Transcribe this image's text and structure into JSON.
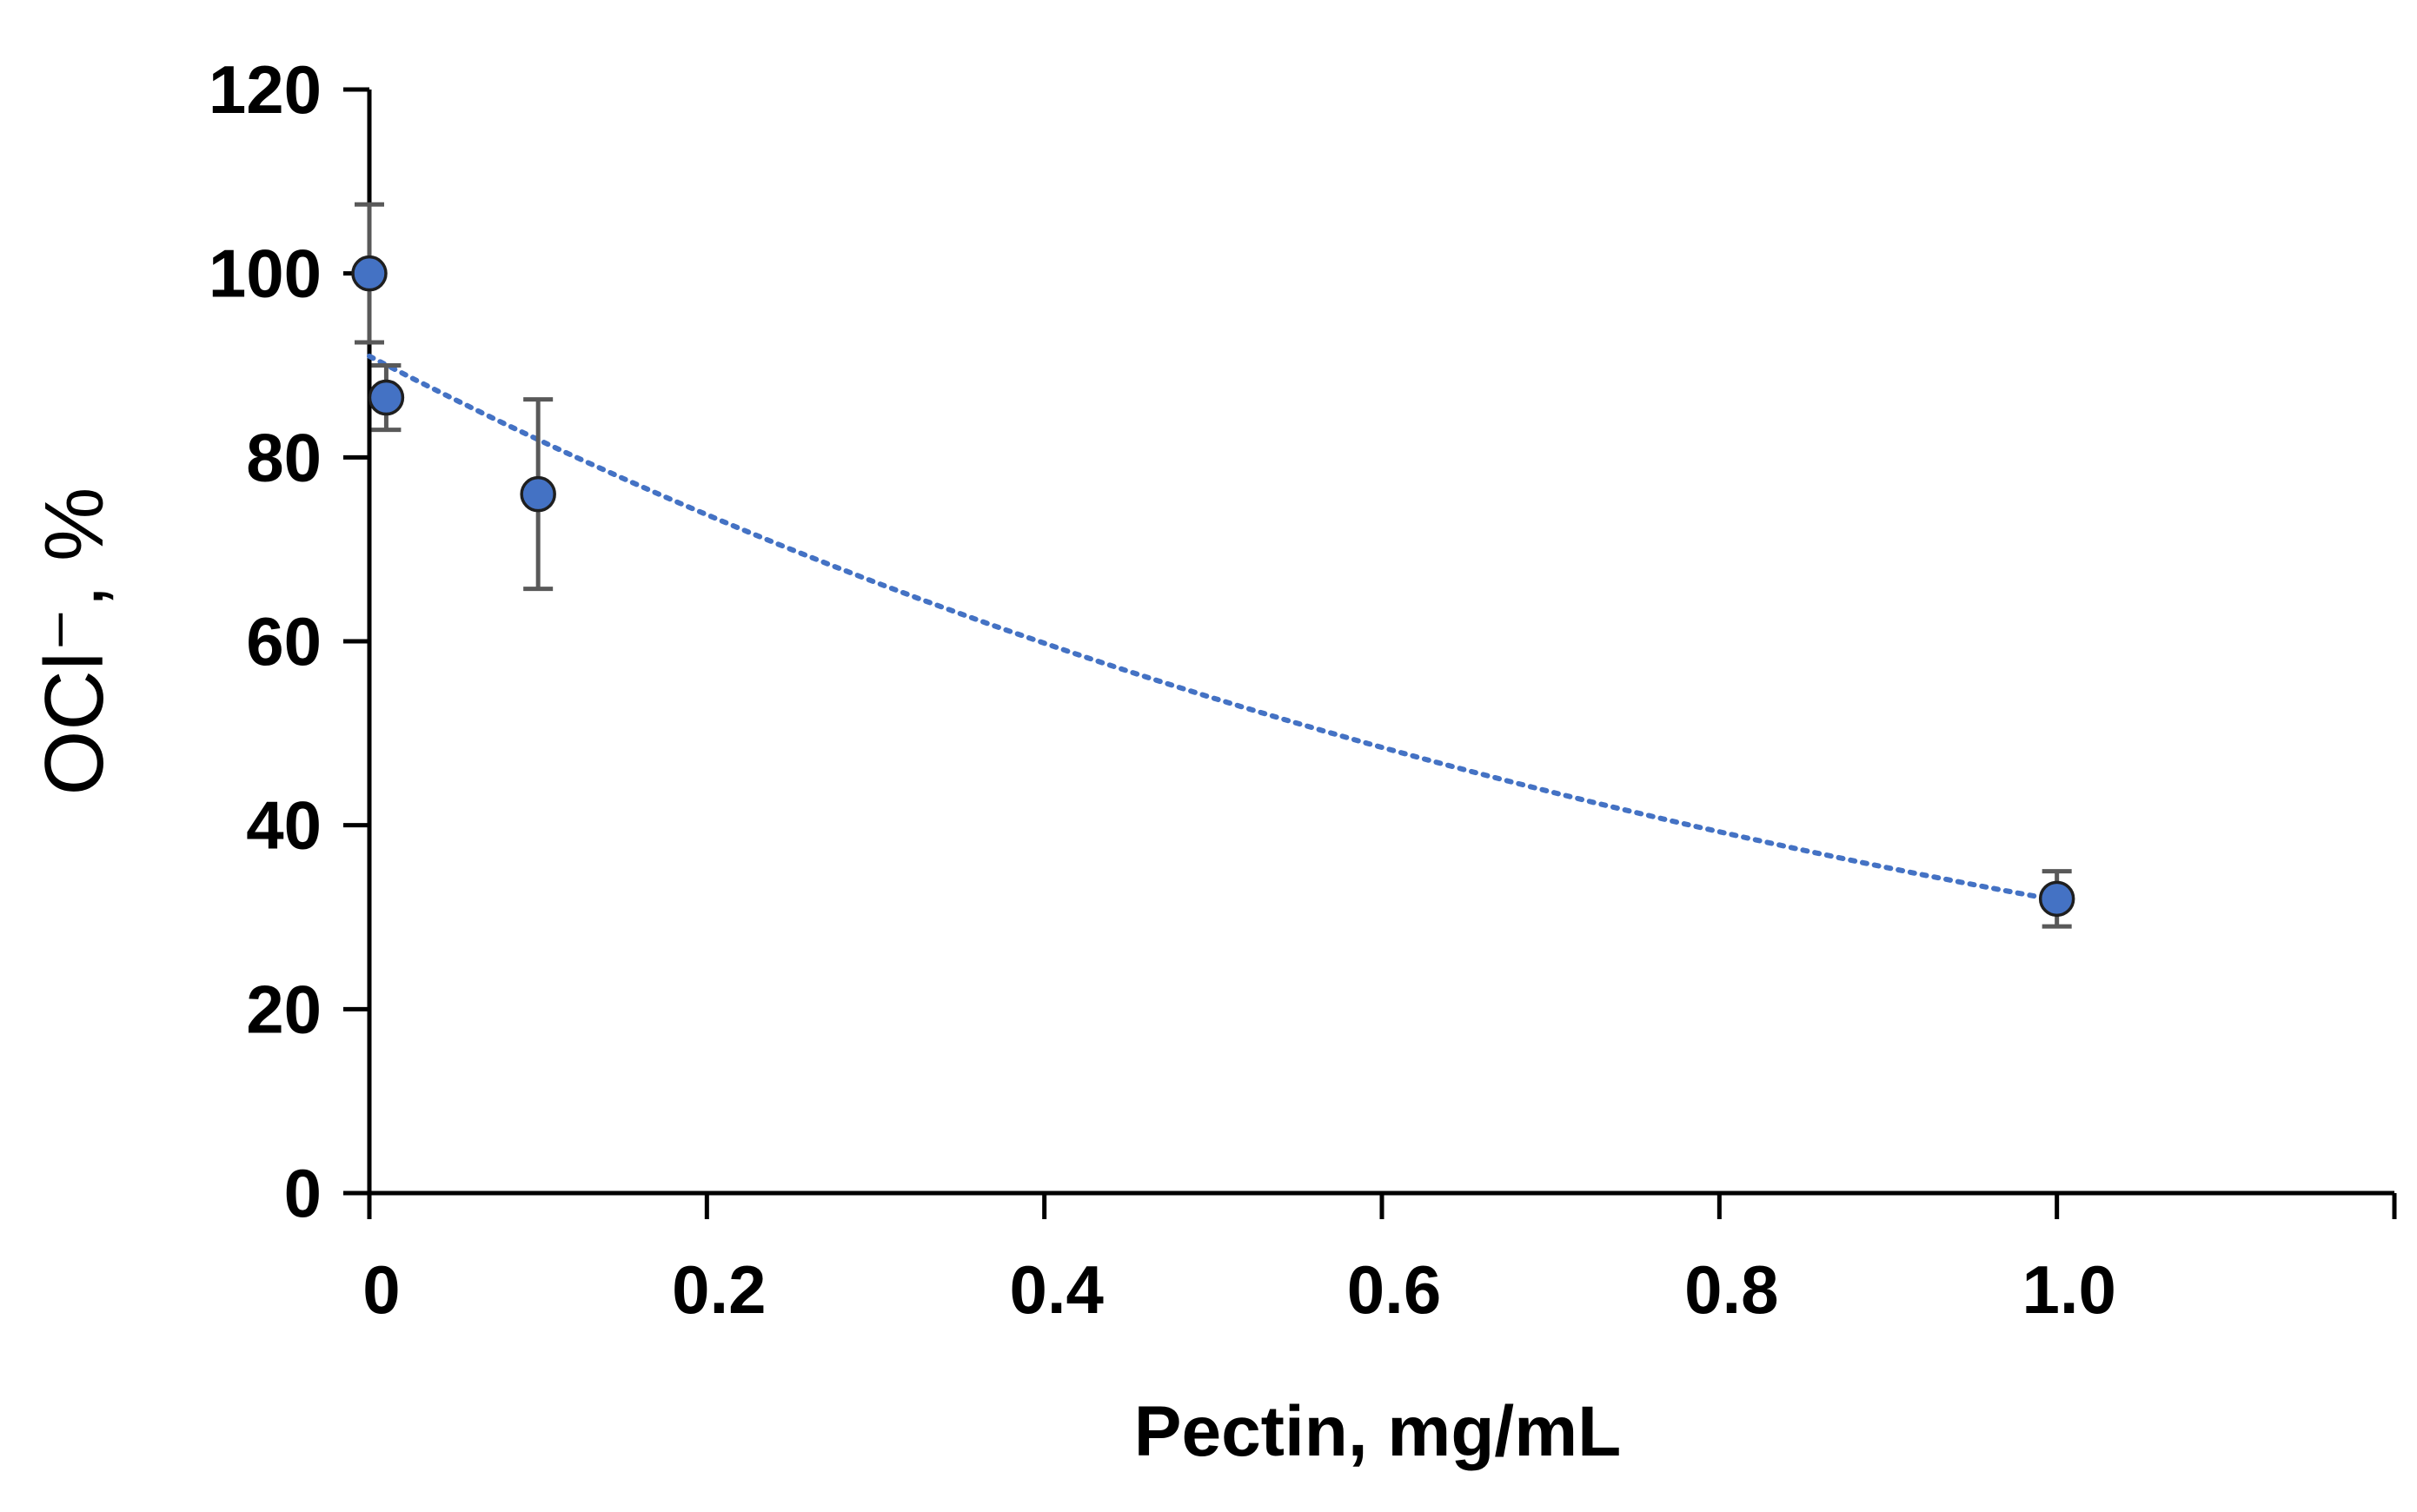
{
  "chart_data": {
    "type": "scatter",
    "title": "",
    "xlabel": "Pectin, mg/mL",
    "ylabel": "OCl⁻, %",
    "xlim": [
      0,
      1.2
    ],
    "ylim": [
      0,
      120
    ],
    "x_ticks": [
      0,
      0.2,
      0.4,
      0.6,
      0.8,
      1.0
    ],
    "x_tick_labels": [
      "0",
      "0.2",
      "0.4",
      "0.6",
      "0.8",
      "1.0"
    ],
    "y_ticks": [
      0,
      20,
      40,
      60,
      80,
      100,
      120
    ],
    "y_tick_labels": [
      "0",
      "20",
      "40",
      "60",
      "80",
      "100",
      "120"
    ],
    "grid": false,
    "series": [
      {
        "name": "OCl⁻",
        "x": [
          0,
          0.01,
          0.1,
          1.0
        ],
        "y": [
          100,
          86.5,
          76,
          32
        ],
        "error": [
          7.5,
          3.5,
          10.3,
          3
        ],
        "marker_color": "#4472C4",
        "error_color": "#595959"
      }
    ],
    "trendline": {
      "type": "exponential",
      "a": 91,
      "b": -1.05,
      "x_range": [
        0,
        1.0
      ],
      "color": "#4472C4",
      "style": "dotted"
    }
  }
}
